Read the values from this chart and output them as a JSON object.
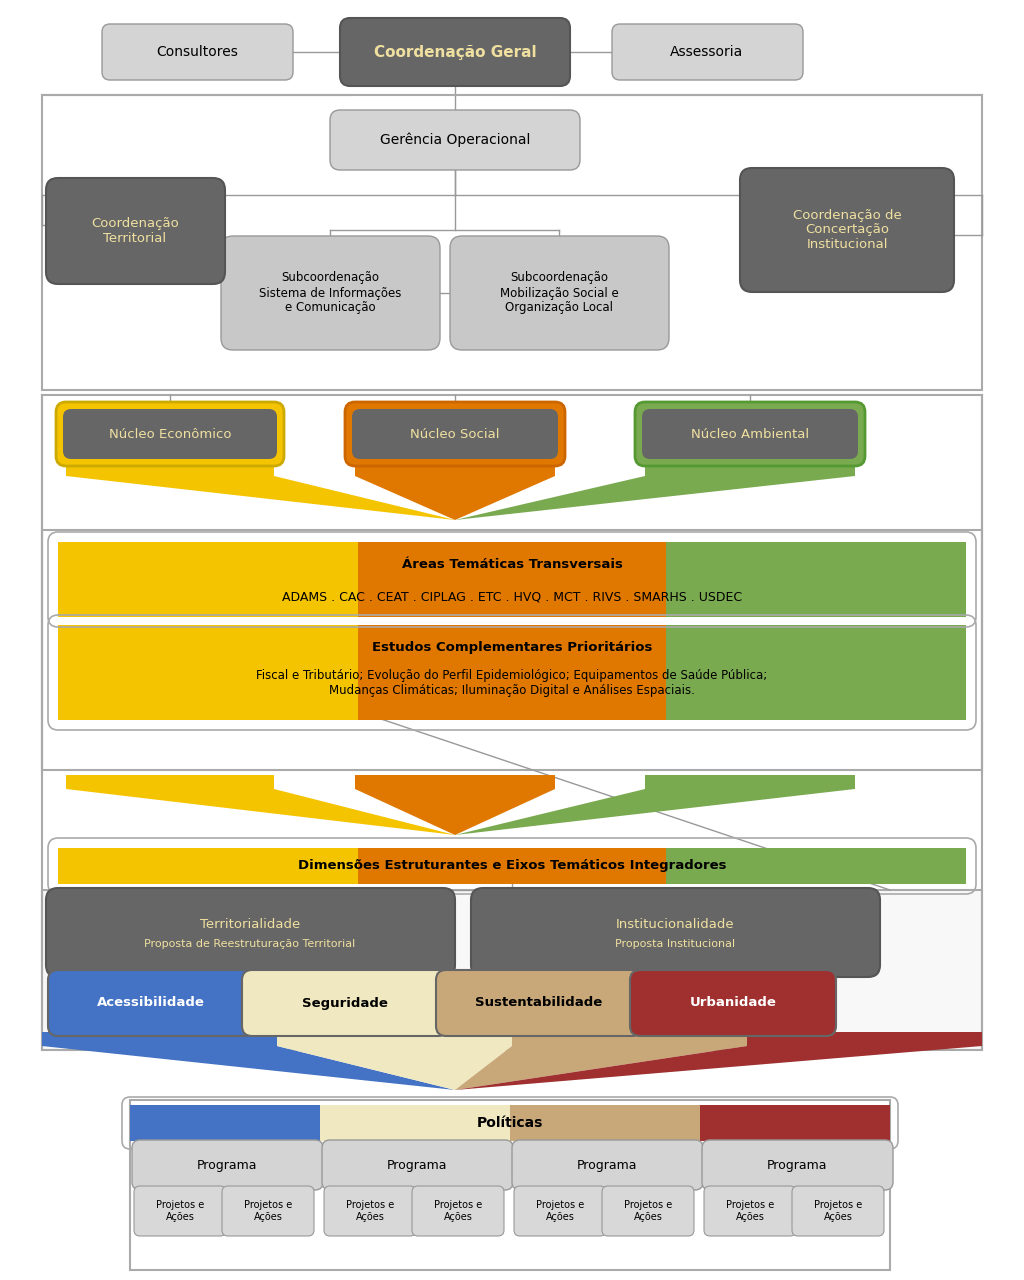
{
  "bg_color": "#ffffff",
  "fig_width": 10.24,
  "fig_height": 12.8,
  "dpi": 100,
  "colors": {
    "yellow": "#f5c400",
    "orange": "#e07800",
    "green": "#7aaa50",
    "blue": "#4472c4",
    "cream": "#f0e8c0",
    "tan": "#c8a878",
    "red_brown": "#a03030",
    "coordenacao_fill": "#666666",
    "coordenacao_text": "#f0e0a0",
    "light_gray_fill": "#d4d4d4",
    "gerencia_fill": "#d4d4d4",
    "subcoordenacao_fill": "#c8c8c8",
    "nucleo_dark": "#666666",
    "acessibilidade_fill": "#4472c4",
    "seguridade_fill": "#f0e8c0",
    "sustentabilidade_fill": "#c8a878",
    "urbanidade_fill": "#a03030",
    "programa_fill": "#d4d4d4",
    "projetos_fill": "#d8d8d8",
    "border_gray": "#aaaaaa",
    "line_gray": "#999999"
  },
  "texts": {
    "coordenacao_geral": "Coordenação Geral",
    "consultores": "Consultores",
    "assessoria": "Assessoria",
    "gerencia": "Gerência Operacional",
    "coord_territorial": "Coordenação\nTerritorial",
    "coord_concertacao": "Coordenação de\nConcertação\nInstitucional",
    "subcoord_info": "Subcoordenação\nSistema de Informações\ne Comunicação",
    "subcoord_mob": "Subcoordenação\nMobilização Social e\nOrganização Local",
    "nucleo_economico": "Núcleo Econômico",
    "nucleo_social": "Núcleo Social",
    "nucleo_ambiental": "Núcleo Ambiental",
    "areas_tematicas_title": "Áreas Temáticas Transversais",
    "areas_tematicas_body": "ADAMS . CAC . CEAT . CIPLAG . ETC . HVQ . MCT . RIVS . SMARHS . USDEC",
    "estudos_title": "Estudos Complementares Prioritários",
    "estudos_body": "Fiscal e Tributário; Evolução do Perfil Epidemiológico; Equipamentos de Saúde Pública;\nMudanças Climáticas; Iluminação Digital e Análises Espaciais.",
    "dimensoes_title": "Dimensões Estruturantes e Eixos Temáticos Integradores",
    "territorialidade_title": "Territorialidade",
    "territorialidade_sub": "Proposta de Reestruturação Territorial",
    "institucionalidade_title": "Institucionalidade",
    "institucionalidade_sub": "Proposta Institucional",
    "acessibilidade": "Acessibilidade",
    "seguridade": "Seguridade",
    "sustentabilidade": "Sustentabilidade",
    "urbanidade": "Urbanidade",
    "politicas": "Políticas",
    "programa": "Programa",
    "projetos": "Projetos e\nAções"
  }
}
